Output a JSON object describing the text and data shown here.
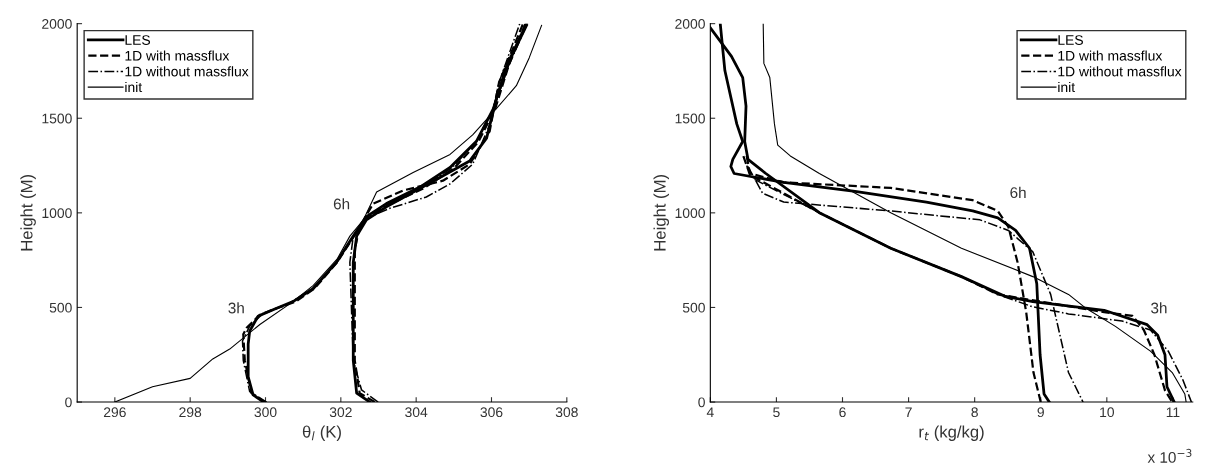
{
  "chart_data": [
    {
      "type": "line",
      "xlabel": "θ$_{l}$ (K)",
      "ylabel": "Height (M)",
      "xlim": [
        295,
        308
      ],
      "ylim": [
        0,
        2000
      ],
      "xticks": [
        296,
        298,
        300,
        302,
        304,
        306,
        308
      ],
      "yticks": [
        0,
        500,
        1000,
        1500,
        2000
      ],
      "grid": false,
      "legend": "top left",
      "marker": "none",
      "annotations": [
        "3h",
        "6h"
      ],
      "series": [
        {
          "name": "LES",
          "color": "#000000",
          "line_style": "solid",
          "x": [
            299.95,
            299.67,
            299.54,
            299.54,
            299.58,
            299.8,
            300.2,
            300.73,
            301.27,
            301.88,
            302.33,
            302.68,
            303.21,
            304.1,
            304.9,
            305.6,
            306.05,
            306.4,
            306.93
          ],
          "values": [
            0,
            38,
            133,
            306,
            375,
            453,
            488,
            531,
            600,
            738,
            877,
            980,
            1049,
            1136,
            1240,
            1378,
            1551,
            1775,
            2000
          ]
        },
        {
          "name": "1D with massflux",
          "color": "#000000",
          "line_style": "dashed",
          "x": [
            299.98,
            299.63,
            299.45,
            299.41,
            299.5,
            299.85,
            300.3,
            300.8,
            301.3,
            301.9,
            302.35,
            302.7,
            303.3,
            304.2,
            305.0,
            305.65,
            306.1,
            306.45,
            306.9
          ],
          "values": [
            0,
            47,
            220,
            358,
            392,
            461,
            496,
            531,
            600,
            738,
            877,
            980,
            1045,
            1130,
            1235,
            1375,
            1551,
            1775,
            2000
          ]
        },
        {
          "name": "1D without massflux",
          "color": "#000000",
          "line_style": "dashdot",
          "x": [
            300.03,
            299.58,
            299.41,
            299.39,
            299.58,
            299.94,
            300.56,
            301.25,
            301.9,
            302.35,
            302.7,
            303.25,
            304.15,
            304.95,
            305.6,
            306.05,
            306.45,
            306.95
          ],
          "values": [
            0,
            55,
            220,
            323,
            401,
            470,
            513,
            600,
            738,
            877,
            980,
            1047,
            1133,
            1238,
            1378,
            1551,
            1775,
            2000
          ]
        },
        {
          "name": "init",
          "color": "#000000",
          "line_style": "solid",
          "x": [
            296.0,
            297.0,
            298.0,
            298.6,
            299.05,
            299.85,
            300.73,
            301.27,
            301.9,
            302.24,
            302.6,
            302.95,
            303.92,
            304.9,
            305.5,
            306.13,
            306.66,
            307.0,
            307.33
          ],
          "values": [
            0,
            81,
            125,
            228,
            280,
            410,
            531,
            617,
            755,
            877,
            963,
            1110,
            1213,
            1309,
            1412,
            1551,
            1672,
            1819,
            1991
          ]
        },
        {
          "color": "#000000",
          "line_style": "solid",
          "x": [
            302.77,
            302.42,
            302.33,
            302.33,
            302.42,
            302.68,
            303.21,
            304.0,
            304.8,
            305.42,
            305.87,
            306.13,
            306.49,
            306.93
          ],
          "values": [
            0,
            47,
            220,
            738,
            877,
            963,
            1032,
            1118,
            1205,
            1274,
            1395,
            1603,
            1810,
            1991
          ]
        },
        {
          "color": "#000000",
          "line_style": "dashed",
          "x": [
            302.9,
            302.5,
            302.37,
            302.37,
            302.5,
            302.86,
            303.65,
            304.71,
            305.42,
            305.95,
            306.2,
            306.84
          ],
          "values": [
            0,
            47,
            220,
            807,
            928,
            1049,
            1118,
            1170,
            1257,
            1430,
            1689,
            2000
          ]
        },
        {
          "color": "#000000",
          "line_style": "dashdot",
          "x": [
            302.99,
            302.55,
            302.33,
            302.24,
            302.33,
            302.68,
            303.3,
            304.27,
            304.9,
            305.5,
            305.95,
            306.2,
            306.75
          ],
          "values": [
            0,
            64,
            220,
            738,
            877,
            971,
            1024,
            1084,
            1153,
            1257,
            1464,
            1689,
            2000
          ]
        }
      ]
    },
    {
      "type": "line",
      "xlabel": "r$_{t}$ (kg/kg)",
      "ylabel": "Height (M)",
      "xlim": [
        4,
        11.3
      ],
      "ylim": [
        0,
        2000
      ],
      "xticks": [
        4,
        5,
        6,
        7,
        8,
        9,
        10,
        11
      ],
      "yticks": [
        0,
        500,
        1000,
        1500,
        2000
      ],
      "grid": false,
      "legend": "top right",
      "marker": "none",
      "annotations": [
        "6h",
        "3h",
        "x 10$^{−3}$"
      ],
      "series": [
        {
          "name": "LES",
          "color": "#000000",
          "line_style": "solid",
          "x": [
            4.0,
            4.32,
            4.49,
            4.54,
            4.52,
            4.57,
            4.84,
            5.65,
            6.73,
            7.8,
            8.45,
            8.88,
            9.96,
            10.61,
            10.77,
            10.88,
            10.91,
            11.02
          ],
          "values": [
            1978,
            1827,
            1715,
            1564,
            1377,
            1283,
            1208,
            1001,
            813,
            663,
            560,
            531,
            485,
            409,
            353,
            250,
            81,
            0
          ]
        },
        {
          "name": "1D with massflux",
          "color": "#000000",
          "line_style": "dashed",
          "x": [
            4.55,
            4.6,
            5.11,
            6.73,
            7.97,
            8.35,
            8.51,
            8.65,
            8.78,
            8.89,
            9.0
          ],
          "values": [
            1301,
            1208,
            1161,
            1132,
            1067,
            1010,
            926,
            738,
            475,
            156,
            0
          ]
        },
        {
          "name": "1D without massflux",
          "color": "#000000",
          "line_style": "dashdot",
          "x": [
            4.57,
            4.79,
            5.11,
            6.73,
            8.08,
            8.51,
            8.88,
            9.15,
            9.42,
            9.64
          ],
          "values": [
            1245,
            1104,
            1057,
            1010,
            963,
            907,
            794,
            569,
            156,
            0
          ]
        },
        {
          "name": "init",
          "color": "#000000",
          "line_style": "solid",
          "x": [
            4.8,
            4.81,
            4.9,
            4.97,
            5.02,
            5.21,
            5.65,
            6.73,
            7.8,
            8.88,
            9.42,
            9.69,
            10.13,
            10.66,
            10.99,
            11.18,
            11.2
          ],
          "values": [
            2000,
            1790,
            1715,
            1470,
            1358,
            1301,
            1208,
            1001,
            813,
            663,
            569,
            494,
            400,
            269,
            156,
            43,
            0
          ]
        },
        {
          "color": "#000000",
          "line_style": "solid",
          "x": [
            4.15,
            4.22,
            4.4,
            4.49,
            4.34,
            4.31,
            4.36,
            5.11,
            6.19,
            7.27,
            7.97,
            8.35,
            8.62,
            8.83,
            8.94,
            8.99,
            9.05,
            9.13
          ],
          "values": [
            2000,
            1752,
            1470,
            1377,
            1283,
            1245,
            1208,
            1161,
            1114,
            1057,
            1010,
            973,
            907,
            813,
            625,
            250,
            43,
            0
          ]
        },
        {
          "color": "#000000",
          "line_style": "dashed",
          "x": [
            4.5,
            4.6,
            5.65,
            6.73,
            7.8,
            8.35,
            9.96,
            10.39,
            10.56,
            10.72,
            10.88,
            10.99
          ],
          "values": [
            1300,
            1200,
            1001,
            813,
            663,
            569,
            475,
            456,
            381,
            250,
            62,
            0
          ]
        },
        {
          "color": "#000000",
          "line_style": "dashdot",
          "x": [
            4.55,
            4.65,
            5.65,
            6.73,
            7.8,
            8.35,
            8.88,
            9.42,
            10.23,
            10.66,
            10.93,
            11.15,
            11.28
          ],
          "values": [
            1250,
            1180,
            1001,
            813,
            663,
            569,
            503,
            466,
            428,
            381,
            269,
            118,
            0
          ]
        }
      ]
    }
  ]
}
